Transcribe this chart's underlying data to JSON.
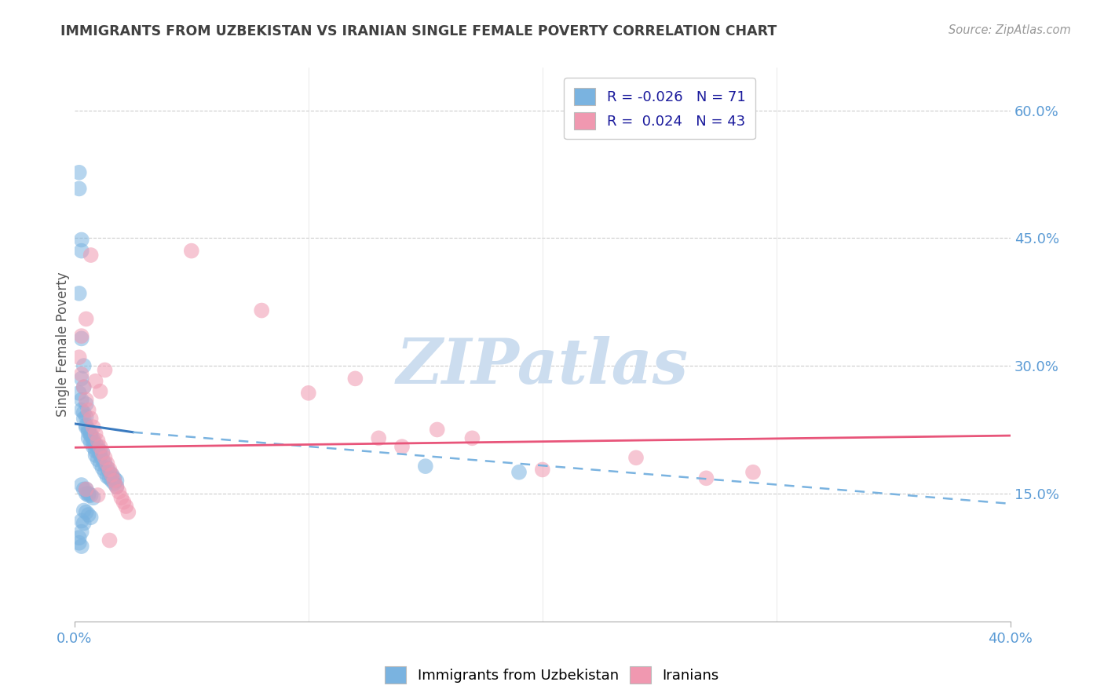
{
  "title": "IMMIGRANTS FROM UZBEKISTAN VS IRANIAN SINGLE FEMALE POVERTY CORRELATION CHART",
  "source": "Source: ZipAtlas.com",
  "ylabel": "Single Female Poverty",
  "watermark": "ZIPatlas",
  "legend_blue_R": "-0.026",
  "legend_blue_N": "71",
  "legend_pink_R": "0.024",
  "legend_pink_N": "43",
  "xlim": [
    0.0,
    0.4
  ],
  "ylim": [
    0.0,
    0.65
  ],
  "right_yticks": [
    0.15,
    0.3,
    0.45,
    0.6
  ],
  "right_yticklabels": [
    "15.0%",
    "30.0%",
    "45.0%",
    "60.0%"
  ],
  "xticks": [
    0.0,
    0.4
  ],
  "xticklabels": [
    "0.0%",
    "40.0%"
  ],
  "blue_color": "#7ab3e0",
  "pink_color": "#f098b0",
  "blue_solid_trendline_x": [
    0.0,
    0.025
  ],
  "blue_solid_trendline_y": [
    0.232,
    0.222
  ],
  "blue_dashed_trendline_x": [
    0.025,
    0.4
  ],
  "blue_dashed_trendline_y": [
    0.222,
    0.138
  ],
  "pink_trendline_x": [
    0.0,
    0.4
  ],
  "pink_trendline_y": [
    0.204,
    0.218
  ],
  "bg_color": "#ffffff",
  "grid_color": "#cccccc",
  "title_color": "#404040",
  "axis_color": "#5b9bd5",
  "watermark_color": "#ccddef",
  "blue_scatter_x": [
    0.002,
    0.002,
    0.003,
    0.003,
    0.002,
    0.003,
    0.002,
    0.004,
    0.003,
    0.004,
    0.003,
    0.005,
    0.004,
    0.005,
    0.005,
    0.006,
    0.006,
    0.007,
    0.007,
    0.008,
    0.008,
    0.009,
    0.009,
    0.01,
    0.01,
    0.011,
    0.011,
    0.012,
    0.012,
    0.013,
    0.013,
    0.014,
    0.014,
    0.015,
    0.015,
    0.016,
    0.016,
    0.017,
    0.017,
    0.018,
    0.018,
    0.003,
    0.004,
    0.005,
    0.006,
    0.007,
    0.008,
    0.009,
    0.01,
    0.011,
    0.012,
    0.005,
    0.006,
    0.007,
    0.008,
    0.003,
    0.004,
    0.005,
    0.006,
    0.004,
    0.005,
    0.006,
    0.007,
    0.003,
    0.004,
    0.003,
    0.002,
    0.002,
    0.003,
    0.15,
    0.19
  ],
  "blue_scatter_y": [
    0.527,
    0.508,
    0.448,
    0.435,
    0.385,
    0.332,
    0.268,
    0.3,
    0.285,
    0.275,
    0.26,
    0.255,
    0.245,
    0.24,
    0.23,
    0.225,
    0.215,
    0.21,
    0.22,
    0.205,
    0.215,
    0.2,
    0.195,
    0.19,
    0.2,
    0.185,
    0.195,
    0.18,
    0.19,
    0.175,
    0.185,
    0.17,
    0.18,
    0.168,
    0.175,
    0.165,
    0.172,
    0.162,
    0.168,
    0.158,
    0.165,
    0.248,
    0.238,
    0.228,
    0.222,
    0.218,
    0.212,
    0.208,
    0.205,
    0.2,
    0.198,
    0.155,
    0.15,
    0.148,
    0.145,
    0.16,
    0.155,
    0.15,
    0.148,
    0.13,
    0.128,
    0.125,
    0.122,
    0.118,
    0.115,
    0.105,
    0.098,
    0.092,
    0.088,
    0.182,
    0.175
  ],
  "pink_scatter_x": [
    0.002,
    0.003,
    0.004,
    0.005,
    0.006,
    0.007,
    0.008,
    0.009,
    0.01,
    0.011,
    0.012,
    0.013,
    0.014,
    0.015,
    0.016,
    0.017,
    0.018,
    0.019,
    0.02,
    0.021,
    0.022,
    0.023,
    0.003,
    0.005,
    0.007,
    0.009,
    0.011,
    0.013,
    0.05,
    0.08,
    0.1,
    0.12,
    0.13,
    0.14,
    0.155,
    0.17,
    0.2,
    0.24,
    0.27,
    0.29,
    0.005,
    0.01,
    0.015
  ],
  "pink_scatter_y": [
    0.31,
    0.29,
    0.275,
    0.26,
    0.248,
    0.238,
    0.228,
    0.22,
    0.212,
    0.205,
    0.198,
    0.192,
    0.185,
    0.178,
    0.172,
    0.165,
    0.158,
    0.152,
    0.145,
    0.14,
    0.135,
    0.128,
    0.335,
    0.355,
    0.43,
    0.282,
    0.27,
    0.295,
    0.435,
    0.365,
    0.268,
    0.285,
    0.215,
    0.205,
    0.225,
    0.215,
    0.178,
    0.192,
    0.168,
    0.175,
    0.155,
    0.148,
    0.095
  ]
}
